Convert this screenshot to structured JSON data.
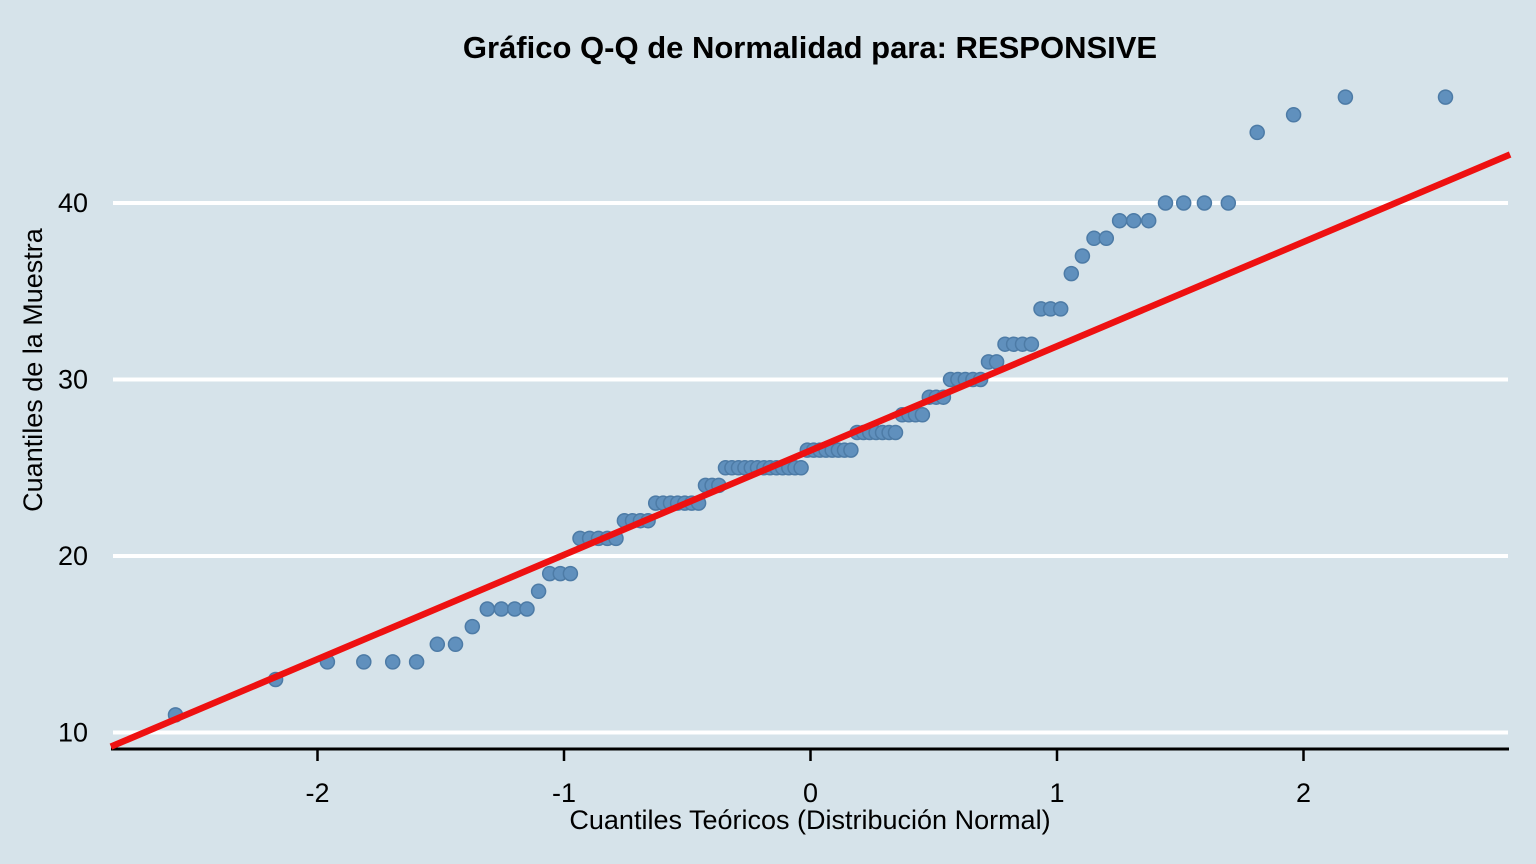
{
  "title": "Gráfico Q-Q de Normalidad para: RESPONSIVE",
  "colors": {
    "background": "#d6e3ea",
    "point_fill": "#6090bd",
    "point_stroke": "#4d7ba6",
    "ref_line": "#ee1111",
    "gridline": "#ffffff",
    "axis": "#000000",
    "text": "#000000"
  },
  "chart_data": {
    "type": "scatter",
    "subtype": "qq-normal-plot",
    "title": "Gráfico Q-Q de Normalidad para: RESPONSIVE",
    "xlabel": "Cuantiles Teóricos (Distribución Normal)",
    "ylabel": "Cuantiles de la Muestra",
    "xlim": [
      -2.84,
      2.84
    ],
    "ylim": [
      9.1,
      46.8
    ],
    "x_ticks": [
      -2,
      -1,
      0,
      1,
      2
    ],
    "y_ticks": [
      10,
      20,
      30,
      40
    ],
    "grid": "horizontal-white-lines-at-y-ticks",
    "legend": "none",
    "n_points": 100,
    "points": [
      [
        -2.576,
        11
      ],
      [
        -2.17,
        13
      ],
      [
        -1.96,
        14
      ],
      [
        -1.812,
        14
      ],
      [
        -1.695,
        14
      ],
      [
        -1.598,
        14
      ],
      [
        -1.514,
        15
      ],
      [
        -1.44,
        15
      ],
      [
        -1.372,
        16
      ],
      [
        -1.311,
        17
      ],
      [
        -1.254,
        17
      ],
      [
        -1.2,
        17
      ],
      [
        -1.15,
        17
      ],
      [
        -1.103,
        18
      ],
      [
        -1.058,
        19
      ],
      [
        -1.015,
        19
      ],
      [
        -0.974,
        19
      ],
      [
        -0.935,
        21
      ],
      [
        -0.896,
        21
      ],
      [
        -0.86,
        21
      ],
      [
        -0.824,
        21
      ],
      [
        -0.789,
        21
      ],
      [
        -0.755,
        22
      ],
      [
        -0.722,
        22
      ],
      [
        -0.69,
        22
      ],
      [
        -0.659,
        22
      ],
      [
        -0.628,
        23
      ],
      [
        -0.598,
        23
      ],
      [
        -0.568,
        23
      ],
      [
        -0.539,
        23
      ],
      [
        -0.51,
        23
      ],
      [
        -0.482,
        23
      ],
      [
        -0.454,
        23
      ],
      [
        -0.426,
        24
      ],
      [
        -0.399,
        24
      ],
      [
        -0.372,
        24
      ],
      [
        -0.345,
        25
      ],
      [
        -0.319,
        25
      ],
      [
        -0.292,
        25
      ],
      [
        -0.266,
        25
      ],
      [
        -0.24,
        25
      ],
      [
        -0.215,
        25
      ],
      [
        -0.189,
        25
      ],
      [
        -0.164,
        25
      ],
      [
        -0.138,
        25
      ],
      [
        -0.113,
        25
      ],
      [
        -0.088,
        25
      ],
      [
        -0.063,
        25
      ],
      [
        -0.038,
        25
      ],
      [
        -0.013,
        26
      ],
      [
        0.013,
        26
      ],
      [
        0.038,
        26
      ],
      [
        0.063,
        26
      ],
      [
        0.088,
        26
      ],
      [
        0.113,
        26
      ],
      [
        0.138,
        26
      ],
      [
        0.164,
        26
      ],
      [
        0.189,
        27
      ],
      [
        0.215,
        27
      ],
      [
        0.24,
        27
      ],
      [
        0.266,
        27
      ],
      [
        0.292,
        27
      ],
      [
        0.319,
        27
      ],
      [
        0.345,
        27
      ],
      [
        0.372,
        28
      ],
      [
        0.399,
        28
      ],
      [
        0.426,
        28
      ],
      [
        0.454,
        28
      ],
      [
        0.482,
        29
      ],
      [
        0.51,
        29
      ],
      [
        0.539,
        29
      ],
      [
        0.568,
        30
      ],
      [
        0.598,
        30
      ],
      [
        0.628,
        30
      ],
      [
        0.659,
        30
      ],
      [
        0.69,
        30
      ],
      [
        0.722,
        31
      ],
      [
        0.755,
        31
      ],
      [
        0.789,
        32
      ],
      [
        0.824,
        32
      ],
      [
        0.86,
        32
      ],
      [
        0.896,
        32
      ],
      [
        0.935,
        34
      ],
      [
        0.974,
        34
      ],
      [
        1.015,
        34
      ],
      [
        1.058,
        36
      ],
      [
        1.103,
        37
      ],
      [
        1.15,
        38
      ],
      [
        1.2,
        38
      ],
      [
        1.254,
        39
      ],
      [
        1.311,
        39
      ],
      [
        1.372,
        39
      ],
      [
        1.44,
        40
      ],
      [
        1.514,
        40
      ],
      [
        1.598,
        40
      ],
      [
        1.695,
        40
      ],
      [
        1.812,
        44
      ],
      [
        1.96,
        45
      ],
      [
        2.17,
        46
      ],
      [
        2.576,
        46
      ]
    ],
    "ref_line": {
      "slope": 5.93,
      "intercept": 26.0,
      "x1": -2.838,
      "y1": 9.2,
      "x2": 2.838,
      "y2": 42.75
    }
  }
}
